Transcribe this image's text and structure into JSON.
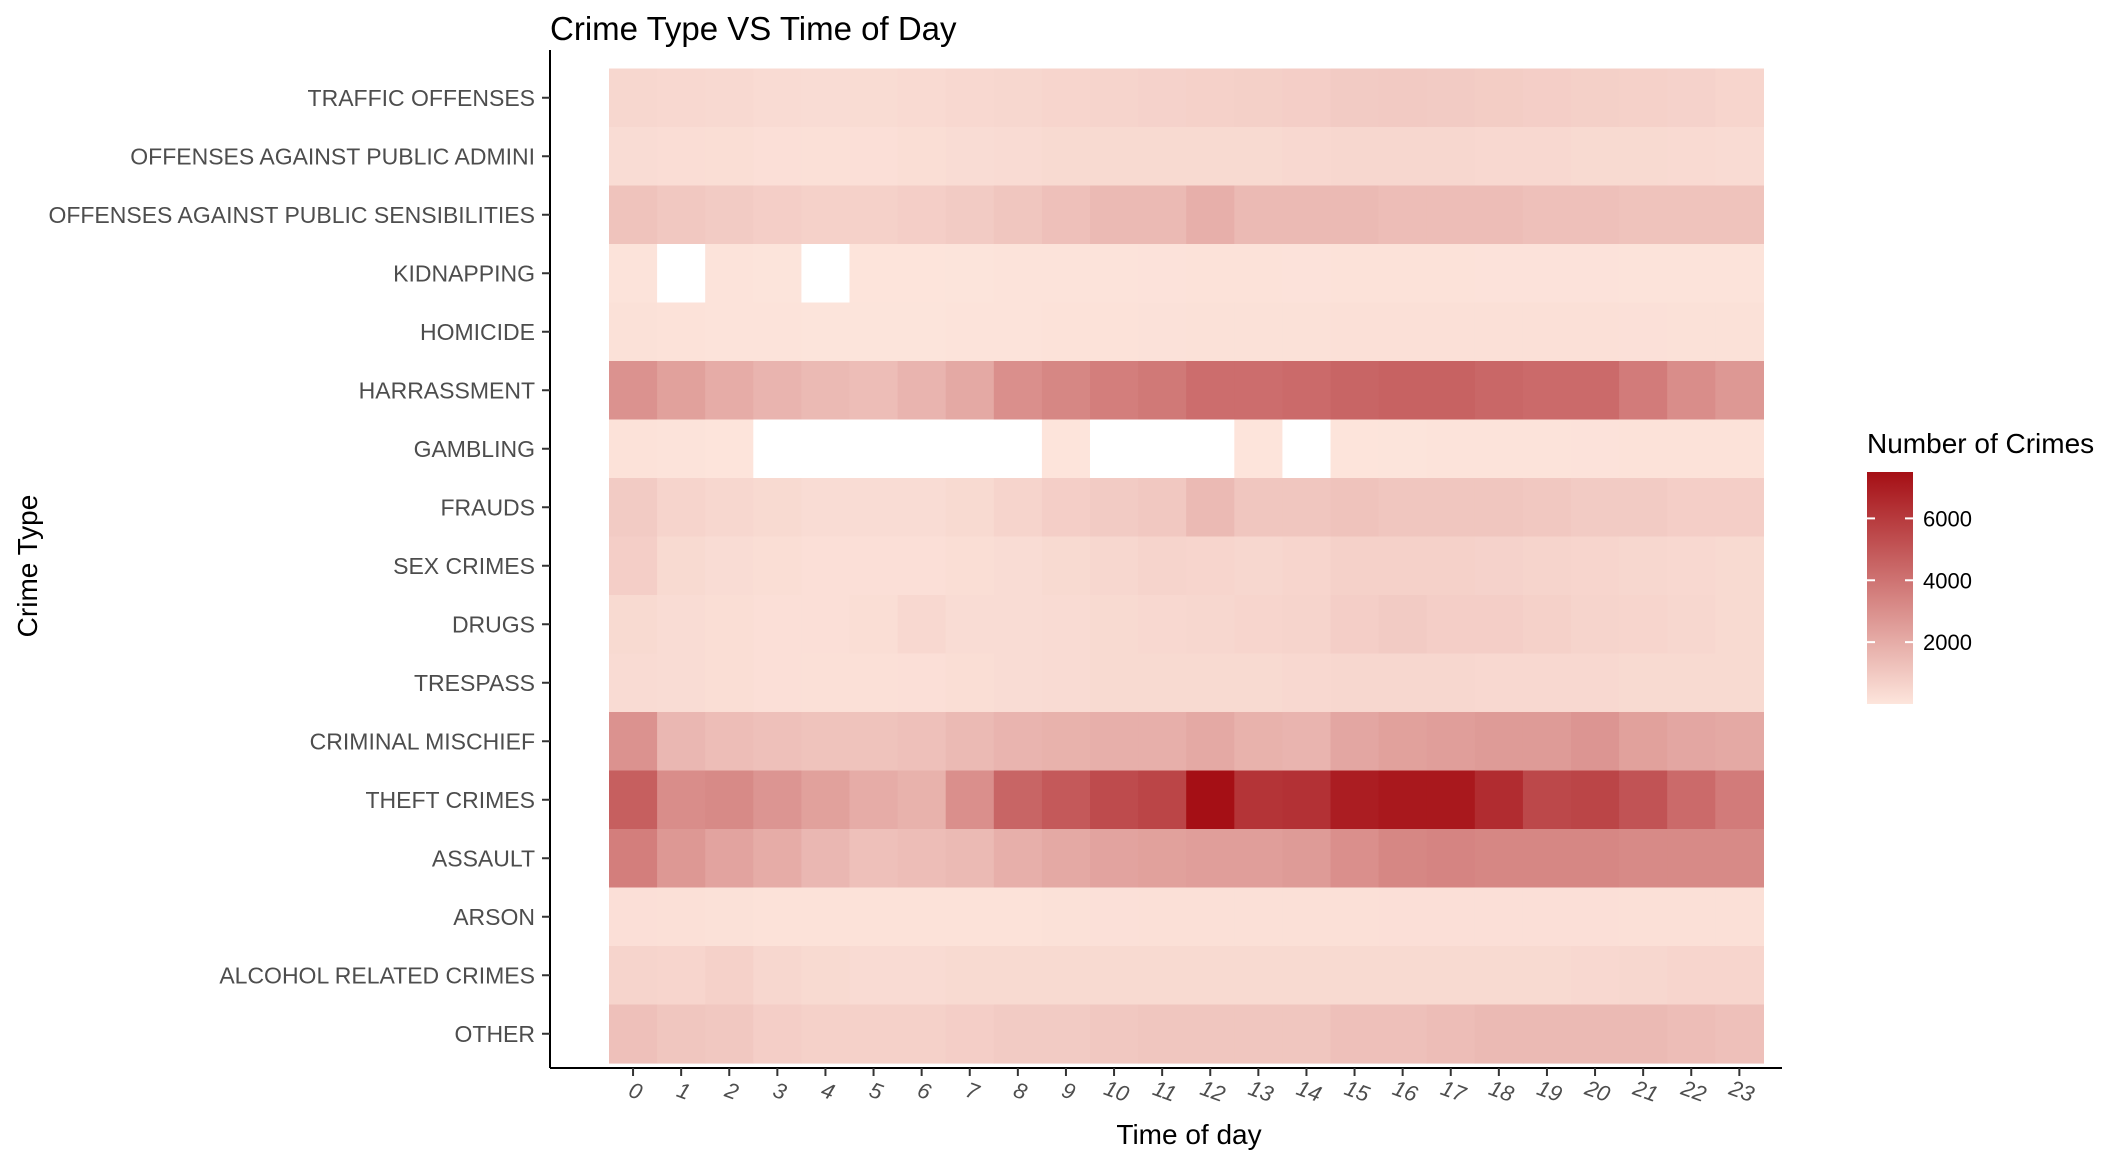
{
  "chart_data": {
    "type": "heatmap",
    "title": "Crime Type VS Time of Day",
    "xlabel": "Time of day",
    "ylabel": "Crime Type",
    "x": [
      "0",
      "1",
      "2",
      "3",
      "4",
      "5",
      "6",
      "7",
      "8",
      "9",
      "10",
      "11",
      "12",
      "13",
      "14",
      "15",
      "16",
      "17",
      "18",
      "19",
      "20",
      "21",
      "22",
      "23"
    ],
    "y": [
      "TRAFFIC OFFENSES",
      "OFFENSES AGAINST PUBLIC ADMINI",
      "OFFENSES AGAINST PUBLIC SENSIBILITIES",
      "KIDNAPPING",
      "HOMICIDE",
      "HARRASSMENT",
      "GAMBLING",
      "FRAUDS",
      "SEX CRIMES",
      "DRUGS",
      "TRESPASS",
      "CRIMINAL MISCHIEF",
      "THEFT CRIMES",
      "ASSAULT",
      "ARSON",
      "ALCOHOL RELATED CRIMES",
      "OTHER"
    ],
    "values": [
      [
        500,
        450,
        420,
        350,
        320,
        330,
        380,
        450,
        500,
        550,
        600,
        650,
        700,
        750,
        800,
        900,
        950,
        900,
        850,
        800,
        750,
        700,
        650,
        550
      ],
      [
        300,
        280,
        250,
        200,
        180,
        200,
        250,
        300,
        350,
        400,
        400,
        400,
        400,
        400,
        450,
        500,
        500,
        500,
        450,
        450,
        400,
        400,
        380,
        350
      ],
      [
        1200,
        1000,
        900,
        800,
        700,
        700,
        800,
        900,
        1100,
        1300,
        1500,
        1500,
        1900,
        1500,
        1500,
        1500,
        1400,
        1400,
        1400,
        1300,
        1300,
        1200,
        1200,
        1200
      ],
      [
        80,
        null,
        60,
        50,
        null,
        40,
        40,
        50,
        60,
        70,
        80,
        90,
        100,
        100,
        90,
        100,
        100,
        100,
        90,
        90,
        90,
        80,
        80,
        80
      ],
      [
        150,
        100,
        80,
        60,
        50,
        50,
        50,
        60,
        80,
        100,
        120,
        130,
        140,
        150,
        150,
        170,
        180,
        180,
        180,
        170,
        170,
        160,
        150,
        150
      ],
      [
        2900,
        2400,
        2000,
        1700,
        1500,
        1400,
        1700,
        2100,
        3000,
        3300,
        3600,
        3800,
        4200,
        4200,
        4300,
        4500,
        4600,
        4600,
        4400,
        4300,
        4300,
        3700,
        3100,
        2700
      ],
      [
        100,
        60,
        40,
        null,
        null,
        null,
        null,
        null,
        null,
        30,
        null,
        null,
        null,
        20,
        null,
        40,
        50,
        60,
        70,
        80,
        90,
        100,
        110,
        110
      ],
      [
        900,
        600,
        500,
        400,
        300,
        300,
        300,
        400,
        600,
        800,
        900,
        1000,
        1500,
        1100,
        1100,
        1200,
        1100,
        1100,
        1100,
        1000,
        900,
        900,
        800,
        800
      ],
      [
        800,
        400,
        300,
        250,
        200,
        200,
        200,
        250,
        300,
        400,
        500,
        600,
        550,
        500,
        550,
        700,
        700,
        700,
        650,
        600,
        550,
        500,
        450,
        400
      ],
      [
        400,
        300,
        250,
        200,
        200,
        250,
        450,
        300,
        300,
        350,
        400,
        450,
        500,
        550,
        600,
        800,
        900,
        800,
        800,
        700,
        600,
        550,
        500,
        400
      ],
      [
        350,
        300,
        250,
        200,
        180,
        180,
        200,
        250,
        300,
        350,
        400,
        400,
        400,
        400,
        450,
        500,
        500,
        500,
        450,
        450,
        450,
        400,
        400,
        400
      ],
      [
        2900,
        1600,
        1400,
        1300,
        1200,
        1200,
        1300,
        1500,
        1700,
        1800,
        1900,
        1900,
        2100,
        1800,
        1700,
        2200,
        2400,
        2500,
        2600,
        2600,
        2800,
        2400,
        2200,
        2100
      ],
      [
        4700,
        3100,
        3200,
        2800,
        2400,
        2000,
        1800,
        3000,
        4500,
        4900,
        5400,
        5600,
        7500,
        6200,
        6300,
        7000,
        7200,
        7200,
        6500,
        5500,
        5600,
        5100,
        4300,
        3700
      ],
      [
        3600,
        2700,
        2300,
        2000,
        1600,
        1300,
        1400,
        1500,
        1900,
        2100,
        2300,
        2400,
        2500,
        2500,
        2600,
        3000,
        3300,
        3400,
        3300,
        3300,
        3300,
        3200,
        3200,
        3200
      ],
      [
        200,
        180,
        150,
        120,
        100,
        100,
        100,
        100,
        120,
        150,
        160,
        170,
        170,
        170,
        180,
        190,
        200,
        200,
        200,
        200,
        200,
        190,
        180,
        180
      ],
      [
        600,
        550,
        700,
        500,
        400,
        350,
        350,
        400,
        400,
        400,
        400,
        400,
        400,
        400,
        400,
        400,
        400,
        400,
        400,
        400,
        450,
        500,
        550,
        550
      ],
      [
        1300,
        1100,
        1000,
        800,
        700,
        700,
        700,
        800,
        900,
        900,
        1000,
        1100,
        1100,
        1100,
        1100,
        1300,
        1300,
        1400,
        1500,
        1500,
        1500,
        1500,
        1400,
        1300
      ]
    ],
    "color_scale": {
      "low": "#fde5dc",
      "high": "#a50f15",
      "missing": "#ffffff",
      "domain": [
        0,
        7500
      ]
    },
    "legend": {
      "title": "Number of Crimes",
      "ticks": [
        2000,
        4000,
        6000
      ],
      "tick_labels": [
        "2000",
        "4000",
        "6000"
      ],
      "position": "right"
    },
    "grid": false
  }
}
